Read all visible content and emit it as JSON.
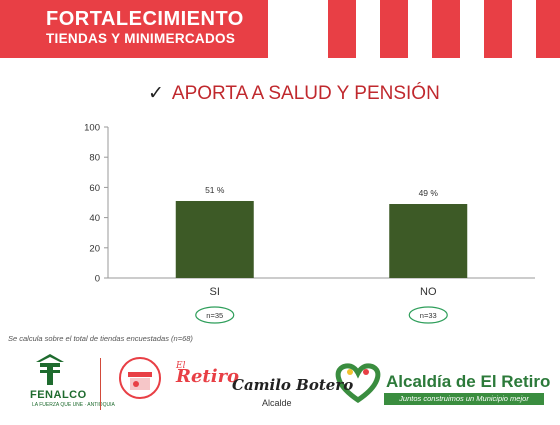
{
  "header": {
    "title_line1": "FORTALECIMIENTO",
    "title_line2": "TIENDAS Y MINIMERCADOS",
    "accent_color": "#e83f45"
  },
  "subtitle": {
    "check_icon": "check-icon",
    "text": "APORTA A SALUD Y PENSIÓN"
  },
  "chart_data": {
    "type": "bar",
    "categories": [
      "SI",
      "NO"
    ],
    "values": [
      51,
      49
    ],
    "data_labels": [
      "51 %",
      "49 %"
    ],
    "n_labels": [
      "n=35",
      "n=33"
    ],
    "ylim": [
      0,
      100
    ],
    "yticks": [
      "0",
      "20",
      "40",
      "60",
      "80",
      "100"
    ],
    "bar_color": "#3d5a26",
    "grid": false
  },
  "note": "Se calcula sobre el total de tiendas encuestadas (n=68)",
  "footer": {
    "fenalco": "FENALCO",
    "fenalco_sub": "LA FUERZA QUE UNE · ANTIOQUIA",
    "camilo": "Camilo Botero",
    "alcalde": "Alcalde",
    "alcaldia": "Alcaldía de El Retiro",
    "juntos": "Juntos construimos un Municipio mejor"
  }
}
